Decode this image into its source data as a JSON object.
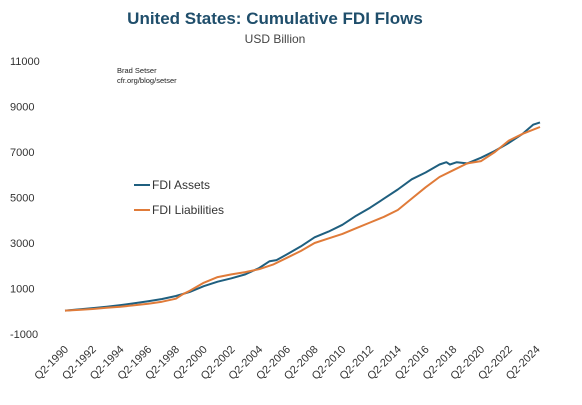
{
  "chart_data": {
    "type": "line",
    "title": "United States: Cumulative FDI Flows",
    "subtitle": "USD Billion",
    "credit": [
      "Brad Setser",
      "cfr.org/blog/setser"
    ],
    "xlabel": "",
    "ylabel": "",
    "ylim": [
      -1000,
      11000
    ],
    "yticks": [
      -1000,
      1000,
      3000,
      5000,
      7000,
      9000,
      11000
    ],
    "ytick_labels": [
      "-1000",
      "1000",
      "3000",
      "5000",
      "7000",
      "9000",
      "11000"
    ],
    "xlim": [
      1990.25,
      2024.5
    ],
    "xticks": [
      1990.25,
      1992.25,
      1994.25,
      1996.25,
      1998.25,
      2000.25,
      2002.25,
      2004.25,
      2006.25,
      2008.25,
      2010.25,
      2012.25,
      2014.25,
      2016.25,
      2018.25,
      2020.25,
      2022.25,
      2024.25
    ],
    "xtick_labels": [
      "Q2-1990",
      "Q2-1992",
      "Q2-1994",
      "Q2-1996",
      "Q2-1998",
      "Q2-2000",
      "Q2-2002",
      "Q2-2004",
      "Q2-2006",
      "Q2-2008",
      "Q2-2010",
      "Q2-2012",
      "Q2-2014",
      "Q2-2016",
      "Q2-2018",
      "Q2-2020",
      "Q2-2022",
      "Q2-2024"
    ],
    "grid": false,
    "legend": {
      "placement": "middle-left"
    },
    "series": [
      {
        "name": "FDI Assets",
        "color": "#1f5f7f",
        "points": [
          [
            1990.25,
            30
          ],
          [
            1991.25,
            80
          ],
          [
            1992.25,
            140
          ],
          [
            1993.25,
            200
          ],
          [
            1994.25,
            270
          ],
          [
            1995.25,
            350
          ],
          [
            1996.25,
            440
          ],
          [
            1997.25,
            540
          ],
          [
            1998.25,
            670
          ],
          [
            1999.25,
            850
          ],
          [
            2000.25,
            1100
          ],
          [
            2001.25,
            1300
          ],
          [
            2002.25,
            1450
          ],
          [
            2003.25,
            1620
          ],
          [
            2004.25,
            1900
          ],
          [
            2005.0,
            2200
          ],
          [
            2005.5,
            2250
          ],
          [
            2006.25,
            2500
          ],
          [
            2007.25,
            2850
          ],
          [
            2008.25,
            3250
          ],
          [
            2009.25,
            3500
          ],
          [
            2010.25,
            3800
          ],
          [
            2011.25,
            4200
          ],
          [
            2012.25,
            4550
          ],
          [
            2013.25,
            4950
          ],
          [
            2014.25,
            5350
          ],
          [
            2015.25,
            5800
          ],
          [
            2016.25,
            6100
          ],
          [
            2017.25,
            6450
          ],
          [
            2017.75,
            6550
          ],
          [
            2018.0,
            6450
          ],
          [
            2018.5,
            6550
          ],
          [
            2019.25,
            6500
          ],
          [
            2020.25,
            6750
          ],
          [
            2021.25,
            7050
          ],
          [
            2022.25,
            7400
          ],
          [
            2023.25,
            7800
          ],
          [
            2024.0,
            8200
          ],
          [
            2024.5,
            8300
          ]
        ]
      },
      {
        "name": "FDI Liabilities",
        "color": "#e07b39",
        "points": [
          [
            1990.25,
            30
          ],
          [
            1991.25,
            60
          ],
          [
            1992.25,
            100
          ],
          [
            1993.25,
            150
          ],
          [
            1994.25,
            200
          ],
          [
            1995.25,
            260
          ],
          [
            1996.25,
            330
          ],
          [
            1997.25,
            420
          ],
          [
            1998.25,
            550
          ],
          [
            1998.75,
            750
          ],
          [
            1999.25,
            900
          ],
          [
            2000.25,
            1250
          ],
          [
            2001.25,
            1500
          ],
          [
            2002.25,
            1620
          ],
          [
            2003.25,
            1720
          ],
          [
            2004.25,
            1850
          ],
          [
            2005.25,
            2050
          ],
          [
            2006.25,
            2350
          ],
          [
            2007.25,
            2650
          ],
          [
            2008.25,
            3000
          ],
          [
            2009.25,
            3200
          ],
          [
            2010.25,
            3400
          ],
          [
            2011.25,
            3650
          ],
          [
            2012.25,
            3900
          ],
          [
            2013.25,
            4150
          ],
          [
            2014.25,
            4450
          ],
          [
            2015.25,
            4950
          ],
          [
            2016.25,
            5450
          ],
          [
            2017.25,
            5900
          ],
          [
            2018.25,
            6200
          ],
          [
            2019.25,
            6500
          ],
          [
            2020.25,
            6600
          ],
          [
            2021.25,
            7000
          ],
          [
            2022.25,
            7500
          ],
          [
            2023.25,
            7800
          ],
          [
            2024.5,
            8100
          ]
        ]
      }
    ]
  }
}
